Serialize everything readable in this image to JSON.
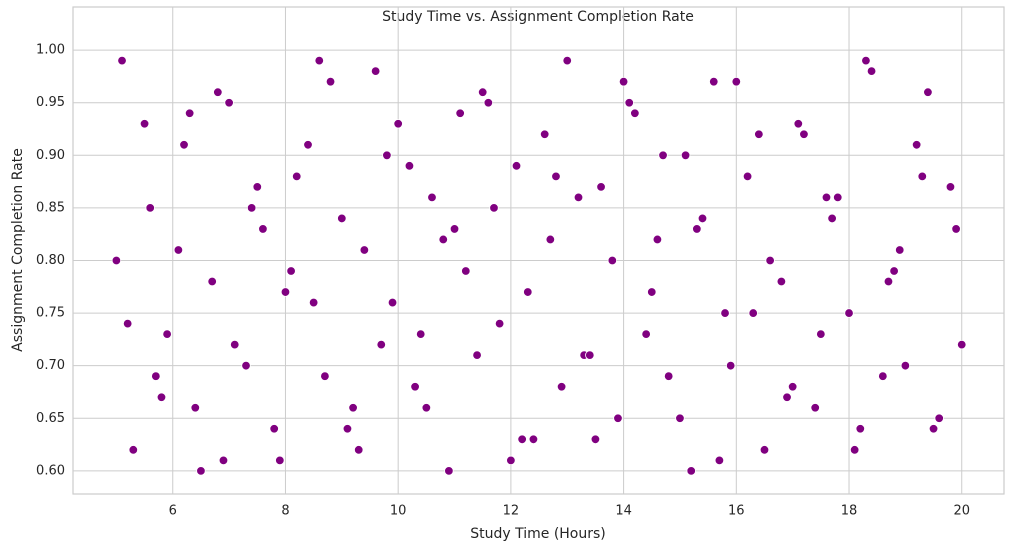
{
  "chart_data": {
    "type": "scatter",
    "title": "Study Time vs. Assignment Completion Rate",
    "x_label": "Study Time (Hours)",
    "y_label": "Assignment Completion Rate",
    "color": "#800080",
    "grid": true,
    "xlim": [
      4.23,
      20.75
    ],
    "ylim": [
      0.578,
      1.041
    ],
    "xticks": [
      6,
      8,
      10,
      12,
      14,
      16,
      18,
      20
    ],
    "yticks": [
      {
        "value": 0.6,
        "label": "0.60"
      },
      {
        "value": 0.65,
        "label": "0.65"
      },
      {
        "value": 0.7,
        "label": "0.70"
      },
      {
        "value": 0.75,
        "label": "0.75"
      },
      {
        "value": 0.8,
        "label": "0.80"
      },
      {
        "value": 0.85,
        "label": "0.85"
      },
      {
        "value": 0.9,
        "label": "0.90"
      },
      {
        "value": 0.95,
        "label": "0.95"
      },
      {
        "value": 1.0,
        "label": "1.00"
      }
    ],
    "x": [
      5.1,
      5.3,
      5.6,
      5.9,
      6.2,
      6.4,
      6.7,
      7.0,
      7.3,
      7.6,
      7.9,
      8.2,
      8.5,
      8.8,
      9.1,
      9.4,
      9.7,
      10.0,
      10.3,
      10.6,
      10.9,
      11.2,
      11.5,
      11.8,
      12.1,
      12.4,
      12.7,
      13.0,
      13.3,
      13.6,
      13.9,
      14.2,
      14.5,
      14.8,
      15.1,
      15.4,
      15.7,
      16.0,
      16.3,
      16.6,
      16.9,
      17.2,
      17.5,
      17.8,
      18.1,
      18.4,
      18.7,
      19.0,
      19.3,
      19.6,
      19.9,
      5.2,
      5.5,
      5.8,
      6.1,
      6.5,
      6.8,
      7.1,
      7.5,
      7.8,
      8.1,
      8.4,
      8.7,
      9.0,
      9.3,
      9.6,
      9.9,
      10.2,
      10.5,
      10.8,
      11.1,
      11.4,
      11.7,
      12.0,
      12.3,
      12.6,
      12.9,
      13.2,
      13.5,
      13.8,
      14.1,
      14.4,
      14.7,
      15.0,
      15.3,
      15.6,
      15.9,
      16.2,
      16.5,
      16.8,
      17.1,
      17.4,
      17.7,
      18.0,
      18.3,
      18.6,
      18.9,
      19.2,
      19.5,
      19.8,
      5.0,
      5.7,
      6.3,
      6.9,
      7.4,
      8.0,
      8.6,
      9.2,
      9.8,
      10.4,
      11.0,
      11.6,
      12.2,
      12.8,
      13.4,
      14.0,
      14.6,
      15.2,
      15.8,
      16.4,
      17.0,
      17.6,
      18.2,
      18.8,
      19.4,
      20.0
    ],
    "values": [
      0.99,
      0.62,
      0.85,
      0.73,
      0.91,
      0.66,
      0.78,
      0.95,
      0.7,
      0.83,
      0.61,
      0.88,
      0.76,
      0.97,
      0.64,
      0.81,
      0.72,
      0.93,
      0.68,
      0.86,
      0.6,
      0.79,
      0.96,
      0.74,
      0.89,
      0.63,
      0.82,
      0.99,
      0.71,
      0.87,
      0.65,
      0.94,
      0.77,
      0.69,
      0.9,
      0.84,
      0.61,
      0.97,
      0.75,
      0.8,
      0.67,
      0.92,
      0.73,
      0.86,
      0.62,
      0.98,
      0.78,
      0.7,
      0.88,
      0.65,
      0.83,
      0.74,
      0.93,
      0.67,
      0.81,
      0.6,
      0.96,
      0.72,
      0.87,
      0.64,
      0.79,
      0.91,
      0.69,
      0.84,
      0.62,
      0.98,
      0.76,
      0.89,
      0.66,
      0.82,
      0.94,
      0.71,
      0.85,
      0.61,
      0.77,
      0.92,
      0.68,
      0.86,
      0.63,
      0.8,
      0.95,
      0.73,
      0.9,
      0.65,
      0.83,
      0.97,
      0.7,
      0.88,
      0.62,
      0.78,
      0.93,
      0.66,
      0.84,
      0.75,
      0.99,
      0.69,
      0.81,
      0.91,
      0.64,
      0.87,
      0.8,
      0.69,
      0.94,
      0.61,
      0.85,
      0.77,
      0.99,
      0.66,
      0.9,
      0.73,
      0.83,
      0.95,
      0.63,
      0.88,
      0.71,
      0.97,
      0.82,
      0.6,
      0.75,
      0.92,
      0.68,
      0.86,
      0.64,
      0.79,
      0.96,
      0.72
    ]
  }
}
